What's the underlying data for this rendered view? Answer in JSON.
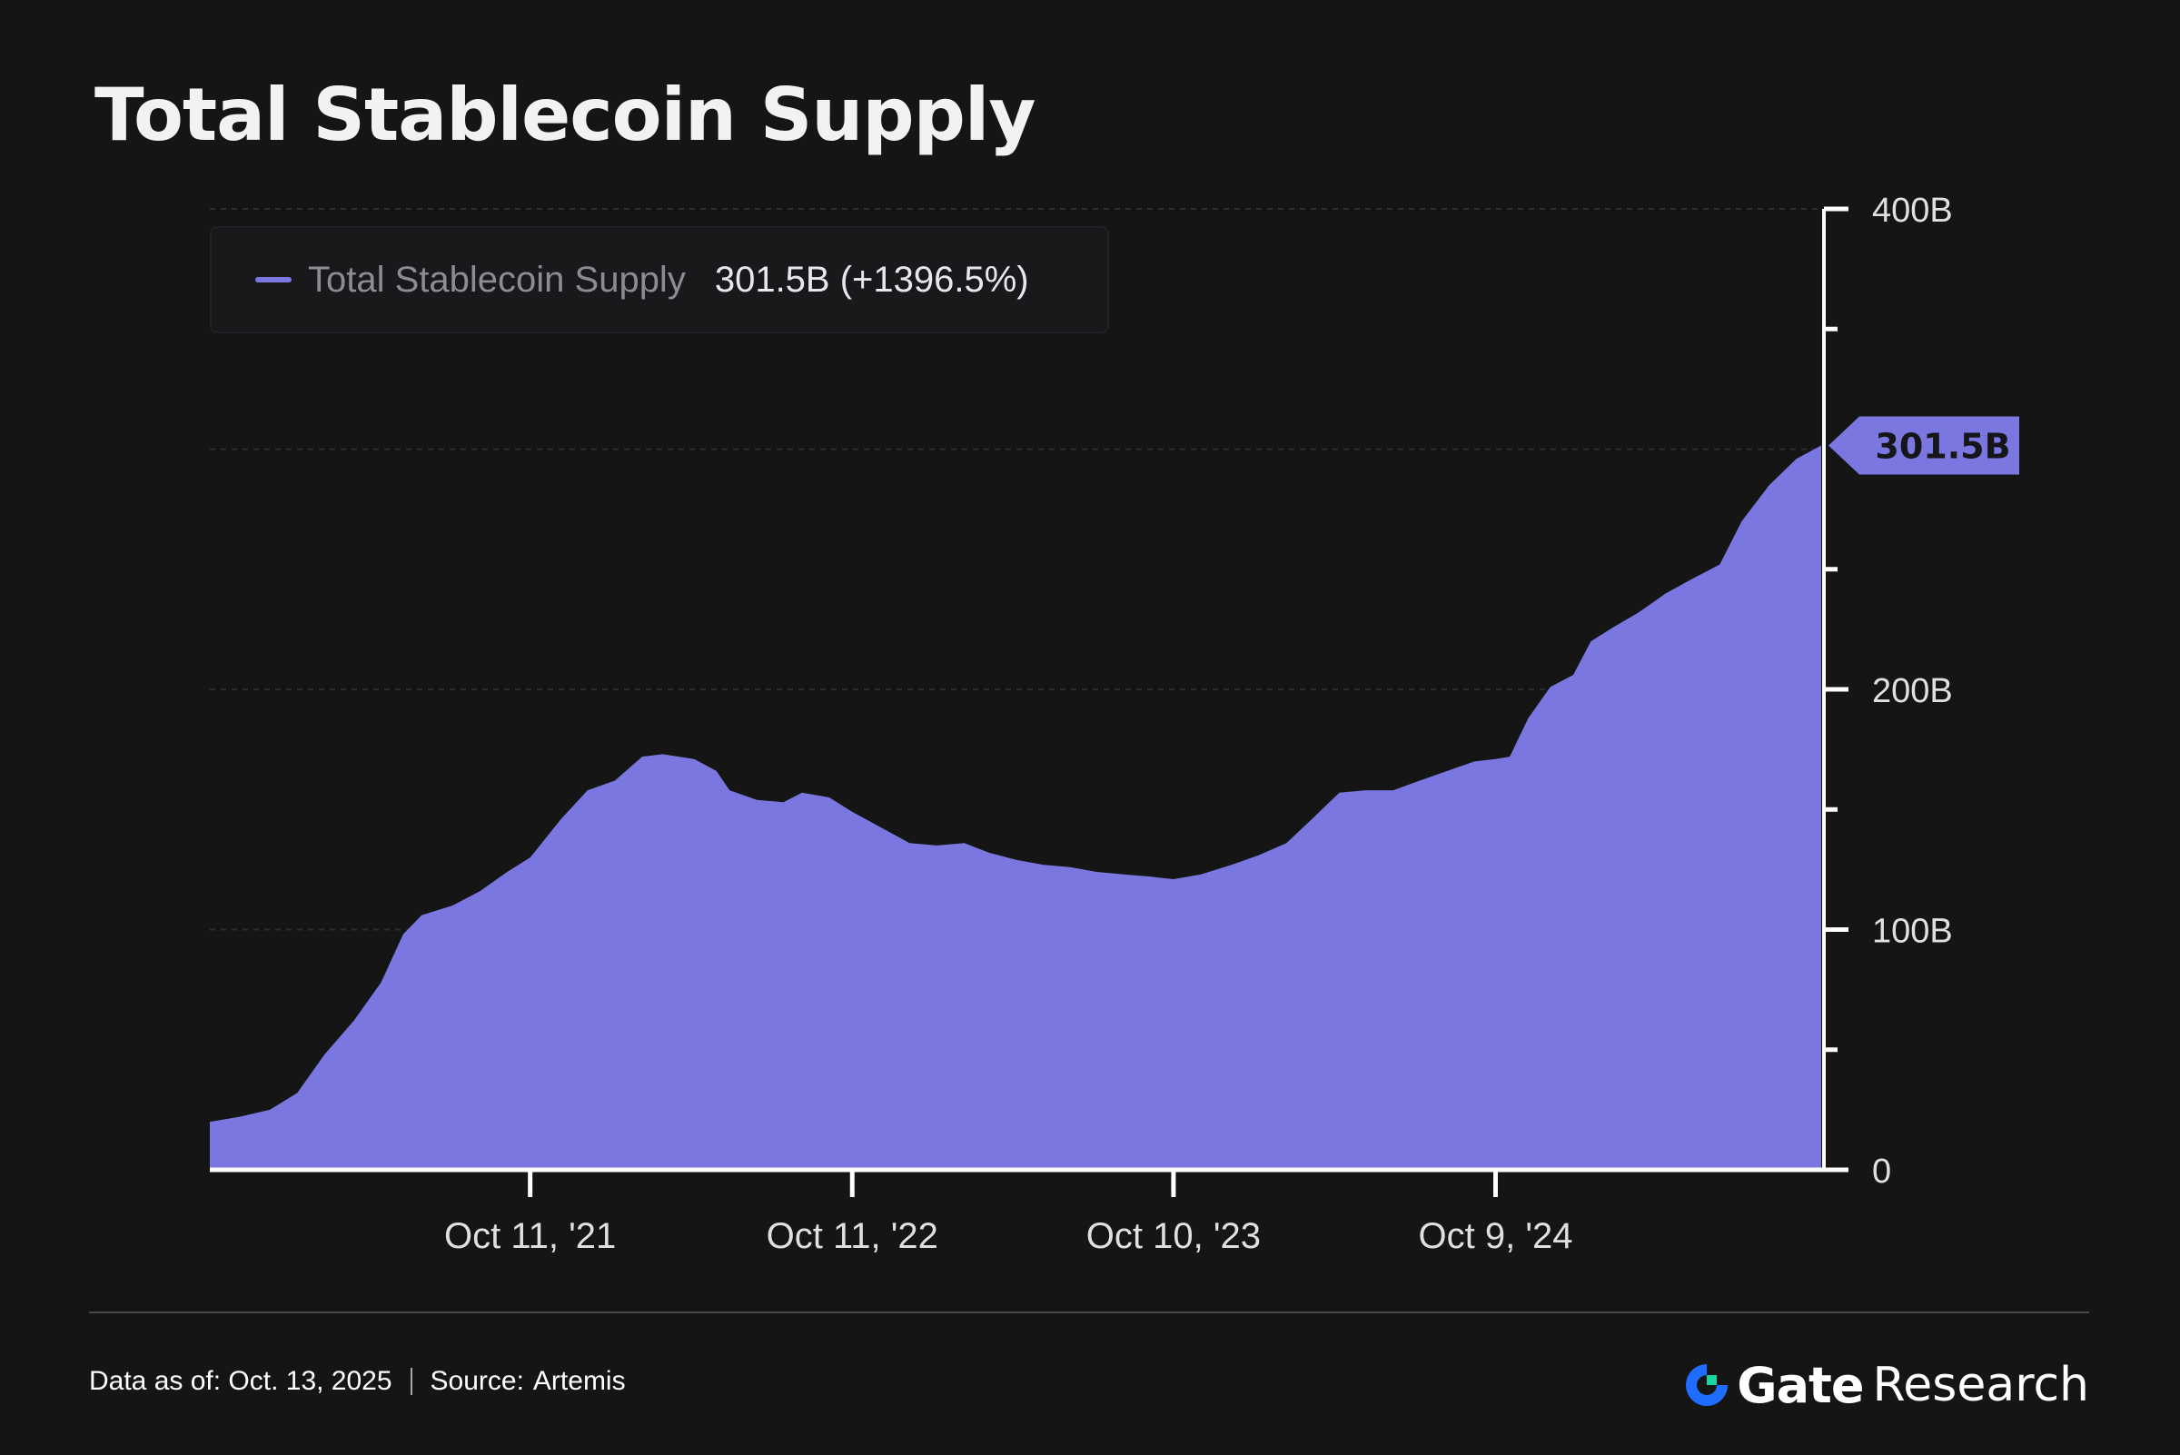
{
  "chart_data": {
    "type": "area",
    "title": "Total Stablecoin Supply",
    "series": [
      {
        "name": "Total Stablecoin Supply",
        "color": "#7a77e0",
        "legend_value": "301.5B (+1396.5%)",
        "last_label": "301.5B",
        "points": [
          [
            "2020-10-13",
            20
          ],
          [
            "2020-11-15",
            22
          ],
          [
            "2020-12-20",
            25
          ],
          [
            "2021-01-20",
            32
          ],
          [
            "2021-02-20",
            48
          ],
          [
            "2021-03-25",
            62
          ],
          [
            "2021-04-25",
            78
          ],
          [
            "2021-05-20",
            98
          ],
          [
            "2021-06-10",
            106
          ],
          [
            "2021-07-15",
            110
          ],
          [
            "2021-08-15",
            116
          ],
          [
            "2021-09-15",
            124
          ],
          [
            "2021-10-11",
            130
          ],
          [
            "2021-11-15",
            146
          ],
          [
            "2021-12-15",
            158
          ],
          [
            "2022-01-15",
            162
          ],
          [
            "2022-02-15",
            172
          ],
          [
            "2022-03-10",
            173
          ],
          [
            "2022-04-15",
            171
          ],
          [
            "2022-05-10",
            166
          ],
          [
            "2022-05-25",
            158
          ],
          [
            "2022-06-25",
            154
          ],
          [
            "2022-07-25",
            153
          ],
          [
            "2022-08-15",
            157
          ],
          [
            "2022-09-15",
            155
          ],
          [
            "2022-10-11",
            149
          ],
          [
            "2022-11-15",
            142
          ],
          [
            "2022-12-15",
            136
          ],
          [
            "2023-01-15",
            135
          ],
          [
            "2023-02-15",
            136
          ],
          [
            "2023-03-15",
            132
          ],
          [
            "2023-04-15",
            129
          ],
          [
            "2023-05-15",
            127
          ],
          [
            "2023-06-15",
            126
          ],
          [
            "2023-07-15",
            124
          ],
          [
            "2023-08-15",
            123
          ],
          [
            "2023-09-15",
            122
          ],
          [
            "2023-10-10",
            121
          ],
          [
            "2023-11-10",
            123
          ],
          [
            "2023-12-15",
            127
          ],
          [
            "2024-01-15",
            131
          ],
          [
            "2024-02-15",
            136
          ],
          [
            "2024-03-15",
            146
          ],
          [
            "2024-04-15",
            157
          ],
          [
            "2024-05-15",
            158
          ],
          [
            "2024-06-15",
            158
          ],
          [
            "2024-07-15",
            162
          ],
          [
            "2024-08-15",
            166
          ],
          [
            "2024-09-15",
            170
          ],
          [
            "2024-10-09",
            171
          ],
          [
            "2024-10-25",
            172
          ],
          [
            "2024-11-15",
            188
          ],
          [
            "2024-12-10",
            201
          ],
          [
            "2025-01-05",
            206
          ],
          [
            "2025-01-25",
            220
          ],
          [
            "2025-02-20",
            226
          ],
          [
            "2025-03-20",
            232
          ],
          [
            "2025-04-20",
            240
          ],
          [
            "2025-05-20",
            246
          ],
          [
            "2025-06-20",
            252
          ],
          [
            "2025-07-15",
            270
          ],
          [
            "2025-08-15",
            285
          ],
          [
            "2025-09-15",
            296
          ],
          [
            "2025-10-13",
            301.5
          ]
        ]
      }
    ],
    "x_ticks": [
      {
        "date": "2021-10-11",
        "label": "Oct 11, '21"
      },
      {
        "date": "2022-10-11",
        "label": "Oct 11, '22"
      },
      {
        "date": "2023-10-10",
        "label": "Oct 10, '23"
      },
      {
        "date": "2024-10-09",
        "label": "Oct 9, '24"
      }
    ],
    "xlim": [
      "2020-10-13",
      "2025-10-13"
    ],
    "ylim": [
      0,
      400
    ],
    "y_ticks_major": [
      {
        "value": 0,
        "label": "0"
      },
      {
        "value": 100,
        "label": "100B"
      },
      {
        "value": 200,
        "label": "200B"
      },
      {
        "value": 400,
        "label": "400B"
      }
    ],
    "y_ticks_minor": [
      50,
      150,
      250,
      350
    ],
    "y_gridlines": [
      100,
      200,
      300,
      400
    ],
    "y_axis_position": "right",
    "grid": "dashed-horizontal",
    "legend_position": "top-left"
  },
  "footer": {
    "data_as_of": "Data as of: Oct. 13, 2025",
    "source_label": "Source:",
    "source_value": "Artemis"
  },
  "brand": {
    "logo": "gate-logo-icon",
    "name": "Gate",
    "suffix": "Research"
  }
}
